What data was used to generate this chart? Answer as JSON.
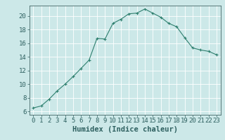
{
  "x": [
    0,
    1,
    2,
    3,
    4,
    5,
    6,
    7,
    8,
    9,
    10,
    11,
    12,
    13,
    14,
    15,
    16,
    17,
    18,
    19,
    20,
    21,
    22,
    23
  ],
  "y": [
    6.5,
    6.8,
    7.8,
    9.0,
    10.0,
    11.1,
    12.3,
    13.5,
    16.7,
    16.6,
    18.9,
    19.5,
    20.3,
    20.4,
    21.0,
    20.4,
    19.8,
    18.9,
    18.4,
    16.8,
    15.3,
    15.0,
    14.8,
    14.3
  ],
  "line_color": "#2e7f6e",
  "marker": "+",
  "marker_size": 3,
  "xlabel": "Humidex (Indice chaleur)",
  "xlim": [
    -0.5,
    23.5
  ],
  "ylim": [
    5.5,
    21.5
  ],
  "yticks": [
    6,
    8,
    10,
    12,
    14,
    16,
    18,
    20
  ],
  "xticks": [
    0,
    1,
    2,
    3,
    4,
    5,
    6,
    7,
    8,
    9,
    10,
    11,
    12,
    13,
    14,
    15,
    16,
    17,
    18,
    19,
    20,
    21,
    22,
    23
  ],
  "background_color": "#cce8e8",
  "grid_color": "#ffffff",
  "tick_label_fontsize": 6.5,
  "xlabel_fontsize": 7.5,
  "line_width": 0.8,
  "marker_edge_width": 0.8
}
